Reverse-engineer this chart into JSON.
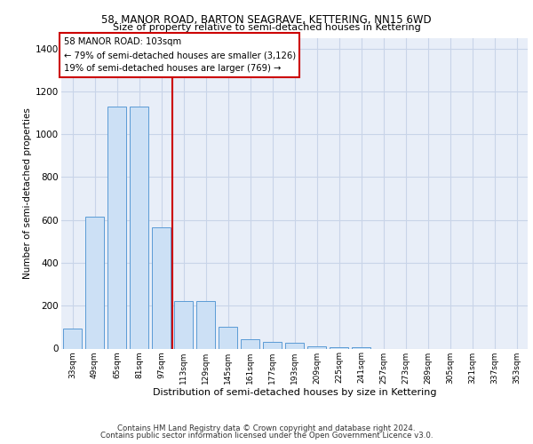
{
  "title1": "58, MANOR ROAD, BARTON SEAGRAVE, KETTERING, NN15 6WD",
  "title2": "Size of property relative to semi-detached houses in Kettering",
  "xlabel": "Distribution of semi-detached houses by size in Kettering",
  "ylabel": "Number of semi-detached properties",
  "footer1": "Contains HM Land Registry data © Crown copyright and database right 2024.",
  "footer2": "Contains public sector information licensed under the Open Government Licence v3.0.",
  "ann_title": "58 MANOR ROAD: 103sqm",
  "ann_line1": "← 79% of semi-detached houses are smaller (3,126)",
  "ann_line2": "19% of semi-detached houses are larger (769) →",
  "bar_color": "#cce0f5",
  "bar_edge_color": "#5b9bd5",
  "vline_color": "#cc0000",
  "grid_color": "#c8d4e8",
  "bg_color": "#e8eef8",
  "categories": [
    "33sqm",
    "49sqm",
    "65sqm",
    "81sqm",
    "97sqm",
    "113sqm",
    "129sqm",
    "145sqm",
    "161sqm",
    "177sqm",
    "193sqm",
    "209sqm",
    "225sqm",
    "241sqm",
    "257sqm",
    "273sqm",
    "289sqm",
    "305sqm",
    "321sqm",
    "337sqm",
    "353sqm"
  ],
  "values": [
    95,
    615,
    1130,
    1130,
    565,
    220,
    220,
    100,
    45,
    30,
    25,
    10,
    5,
    5,
    0,
    0,
    0,
    0,
    0,
    0,
    0
  ],
  "vline_x": 4.5,
  "ylim": [
    0,
    1450
  ],
  "yticks": [
    0,
    200,
    400,
    600,
    800,
    1000,
    1200,
    1400
  ]
}
